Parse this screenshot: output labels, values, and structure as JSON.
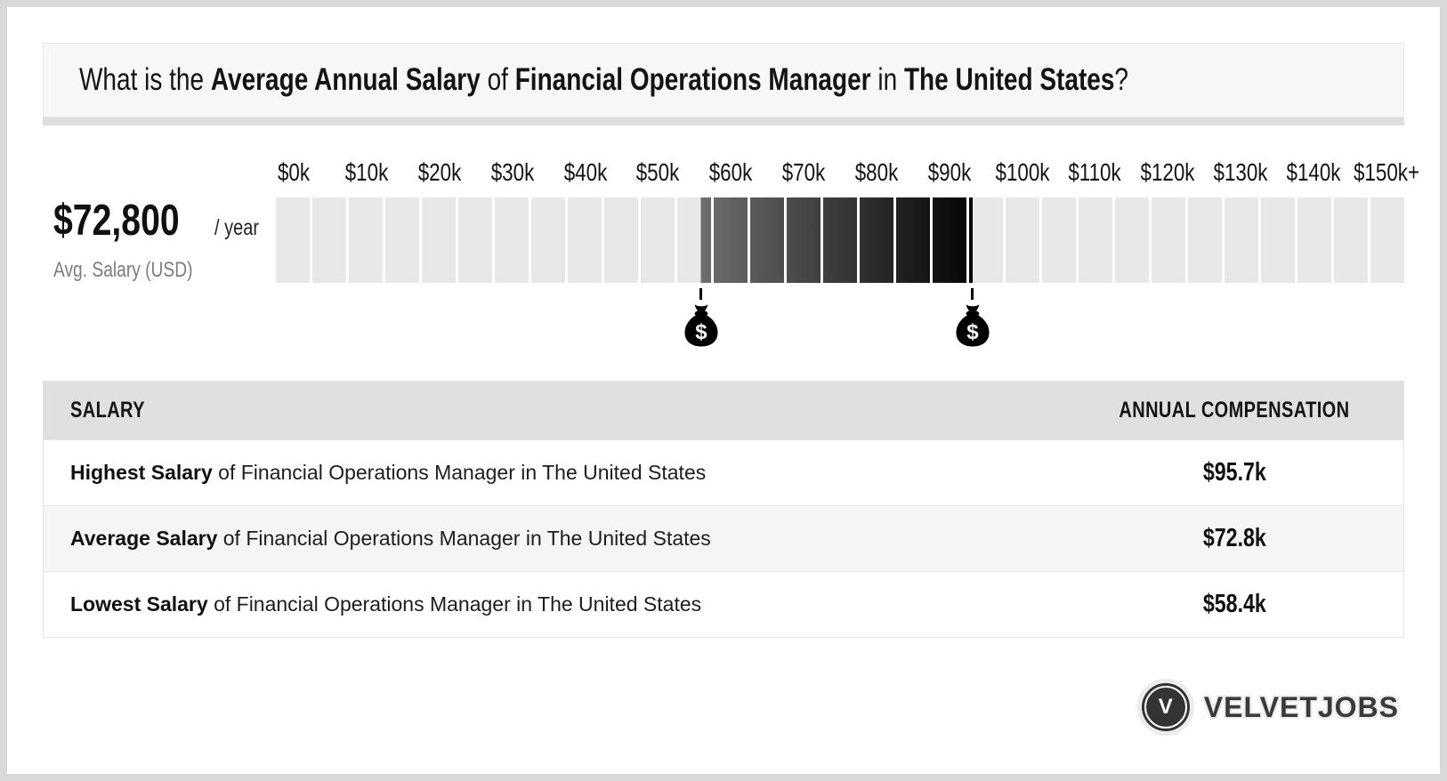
{
  "title": {
    "segments": [
      {
        "text": "What is the ",
        "bold": false
      },
      {
        "text": "Average Annual Salary",
        "bold": true
      },
      {
        "text": " of ",
        "bold": false
      },
      {
        "text": "Financial Operations Manager",
        "bold": true
      },
      {
        "text": " in ",
        "bold": false
      },
      {
        "text": "The United States",
        "bold": true
      },
      {
        "text": "?",
        "bold": false
      }
    ]
  },
  "chart_data": {
    "type": "bar",
    "title": "Average Annual Salary of Financial Operations Manager in The United States",
    "avg_display": "$72,800",
    "per_label": "/ year",
    "avg_caption": "Avg. Salary (USD)",
    "average_annual_salary_usd": 72800,
    "axis_ticks": [
      "$0k",
      "$10k",
      "$20k",
      "$30k",
      "$40k",
      "$50k",
      "$60k",
      "$70k",
      "$80k",
      "$90k",
      "$100k",
      "$110k",
      "$120k",
      "$130k",
      "$140k",
      "$150k+"
    ],
    "axis_min_k": 0,
    "axis_max_k": 155,
    "cells": 31,
    "lowest_k": 58.4,
    "average_k": 72.8,
    "highest_k": 95.7,
    "marker_symbol": "$",
    "base_color": "#e8e8e8",
    "highlight_gradient": [
      "#6e6e6e",
      "#050505"
    ]
  },
  "table": {
    "headers": [
      "SALARY",
      "ANNUAL COMPENSATION"
    ],
    "rows": [
      {
        "bold": "Highest Salary",
        "rest": " of Financial Operations Manager in The United States",
        "value": "$95.7k"
      },
      {
        "bold": "Average Salary",
        "rest": " of Financial Operations Manager in The United States",
        "value": "$72.8k"
      },
      {
        "bold": "Lowest Salary",
        "rest": " of Financial Operations Manager in The United States",
        "value": "$58.4k"
      }
    ]
  },
  "footer": {
    "brand": "VELVETJOBS",
    "badge_letter": "V"
  },
  "colors": {
    "frame": "#d9d9d9",
    "card": "#ffffff",
    "title_box_bg": "#f7f7f7",
    "table_header_bg": "#e0e0e0",
    "alt_row_bg": "#f5f5f5",
    "caption_gray": "#7d7d7d",
    "logo_dark": "#333333"
  }
}
